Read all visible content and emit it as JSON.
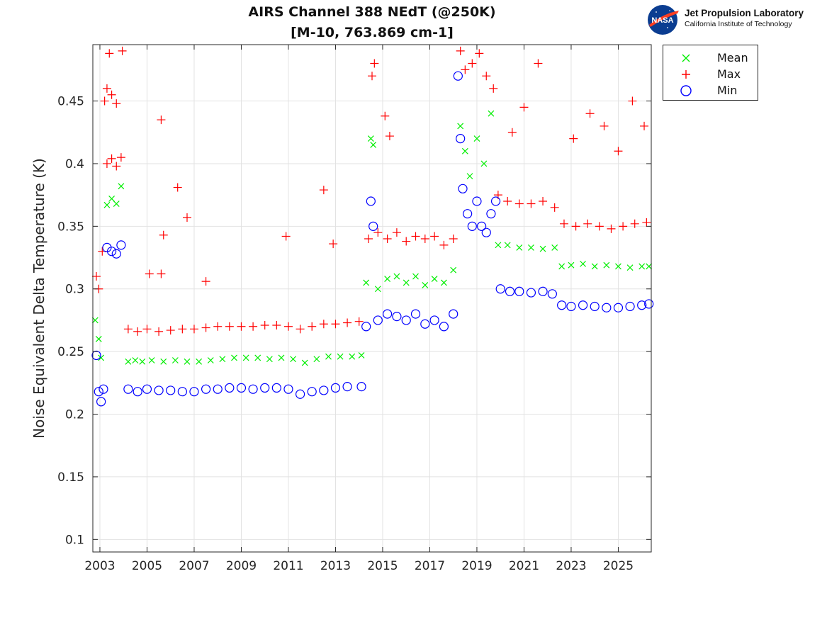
{
  "title": {
    "line1": "AIRS Channel 388 NEdT (@250K)",
    "line2": "[M-10, 763.869 cm-1]"
  },
  "logo": {
    "seal_text": "NASA",
    "name": "Jet Propulsion Laboratory",
    "subtitle": "California Institute of Technology"
  },
  "colors": {
    "mean": "#00ee00",
    "max": "#ff0000",
    "min": "#0000ff",
    "grid": "#e2e2e2",
    "axis": "#262626"
  },
  "chart_data": {
    "type": "scatter",
    "ylabel": "Noise Equivalent Delta Temperature (K)",
    "xlabel": "",
    "xlim": [
      2002.7,
      2026.4
    ],
    "ylim": [
      0.09,
      0.495
    ],
    "xticks": [
      2003,
      2005,
      2007,
      2009,
      2011,
      2013,
      2015,
      2017,
      2019,
      2021,
      2023,
      2025
    ],
    "yticks": [
      0.1,
      0.15,
      0.2,
      0.25,
      0.3,
      0.35,
      0.4,
      0.45
    ],
    "ytick_labels": [
      "0.1",
      "0.15",
      "0.2",
      "0.25",
      "0.3",
      "0.35",
      "0.4",
      "0.45"
    ],
    "grid": true,
    "legend_position": "outside-top-right",
    "series": [
      {
        "name": "Mean",
        "marker": "x",
        "points": [
          [
            2002.8,
            0.275
          ],
          [
            2002.95,
            0.26
          ],
          [
            2003.05,
            0.245
          ],
          [
            2003.3,
            0.367
          ],
          [
            2003.5,
            0.372
          ],
          [
            2003.7,
            0.368
          ],
          [
            2003.9,
            0.382
          ],
          [
            2004.2,
            0.242
          ],
          [
            2004.5,
            0.243
          ],
          [
            2004.8,
            0.242
          ],
          [
            2005.2,
            0.243
          ],
          [
            2005.7,
            0.242
          ],
          [
            2006.2,
            0.243
          ],
          [
            2006.7,
            0.242
          ],
          [
            2007.2,
            0.242
          ],
          [
            2007.7,
            0.243
          ],
          [
            2008.2,
            0.244
          ],
          [
            2008.7,
            0.245
          ],
          [
            2009.2,
            0.245
          ],
          [
            2009.7,
            0.245
          ],
          [
            2010.2,
            0.244
          ],
          [
            2010.7,
            0.245
          ],
          [
            2011.2,
            0.244
          ],
          [
            2011.7,
            0.241
          ],
          [
            2012.2,
            0.244
          ],
          [
            2012.7,
            0.246
          ],
          [
            2013.2,
            0.246
          ],
          [
            2013.7,
            0.246
          ],
          [
            2014.1,
            0.247
          ],
          [
            2014.3,
            0.305
          ],
          [
            2014.5,
            0.42
          ],
          [
            2014.6,
            0.415
          ],
          [
            2014.8,
            0.3
          ],
          [
            2015.2,
            0.308
          ],
          [
            2015.6,
            0.31
          ],
          [
            2016.0,
            0.305
          ],
          [
            2016.4,
            0.31
          ],
          [
            2016.8,
            0.303
          ],
          [
            2017.2,
            0.308
          ],
          [
            2017.6,
            0.305
          ],
          [
            2018.0,
            0.315
          ],
          [
            2018.3,
            0.43
          ],
          [
            2018.5,
            0.41
          ],
          [
            2018.7,
            0.39
          ],
          [
            2019.0,
            0.42
          ],
          [
            2019.3,
            0.4
          ],
          [
            2019.6,
            0.44
          ],
          [
            2019.9,
            0.335
          ],
          [
            2020.3,
            0.335
          ],
          [
            2020.8,
            0.333
          ],
          [
            2021.3,
            0.333
          ],
          [
            2021.8,
            0.332
          ],
          [
            2022.3,
            0.333
          ],
          [
            2022.6,
            0.318
          ],
          [
            2023.0,
            0.319
          ],
          [
            2023.5,
            0.32
          ],
          [
            2024.0,
            0.318
          ],
          [
            2024.5,
            0.319
          ],
          [
            2025.0,
            0.318
          ],
          [
            2025.5,
            0.317
          ],
          [
            2026.0,
            0.318
          ],
          [
            2026.3,
            0.318
          ]
        ]
      },
      {
        "name": "Max",
        "marker": "+",
        "points": [
          [
            2002.85,
            0.31
          ],
          [
            2002.95,
            0.3
          ],
          [
            2003.1,
            0.33
          ],
          [
            2003.2,
            0.45
          ],
          [
            2003.3,
            0.46
          ],
          [
            2003.5,
            0.455
          ],
          [
            2003.7,
            0.448
          ],
          [
            2003.3,
            0.4
          ],
          [
            2003.5,
            0.404
          ],
          [
            2003.7,
            0.398
          ],
          [
            2003.9,
            0.405
          ],
          [
            2003.95,
            0.49
          ],
          [
            2003.4,
            0.488
          ],
          [
            2004.2,
            0.268
          ],
          [
            2004.6,
            0.266
          ],
          [
            2005.0,
            0.268
          ],
          [
            2005.5,
            0.266
          ],
          [
            2006.0,
            0.267
          ],
          [
            2006.5,
            0.268
          ],
          [
            2007.0,
            0.268
          ],
          [
            2007.5,
            0.269
          ],
          [
            2008.0,
            0.27
          ],
          [
            2008.5,
            0.27
          ],
          [
            2009.0,
            0.27
          ],
          [
            2009.5,
            0.27
          ],
          [
            2010.0,
            0.271
          ],
          [
            2010.5,
            0.271
          ],
          [
            2011.0,
            0.27
          ],
          [
            2011.5,
            0.268
          ],
          [
            2012.0,
            0.27
          ],
          [
            2012.5,
            0.272
          ],
          [
            2013.0,
            0.272
          ],
          [
            2013.5,
            0.273
          ],
          [
            2014.0,
            0.274
          ],
          [
            2005.6,
            0.435
          ],
          [
            2006.3,
            0.381
          ],
          [
            2006.7,
            0.357
          ],
          [
            2005.7,
            0.343
          ],
          [
            2010.9,
            0.342
          ],
          [
            2012.5,
            0.379
          ],
          [
            2012.9,
            0.336
          ],
          [
            2007.5,
            0.306
          ],
          [
            2005.1,
            0.312
          ],
          [
            2005.6,
            0.312
          ],
          [
            2014.4,
            0.34
          ],
          [
            2014.55,
            0.47
          ],
          [
            2014.65,
            0.48
          ],
          [
            2014.8,
            0.345
          ],
          [
            2015.2,
            0.34
          ],
          [
            2015.6,
            0.345
          ],
          [
            2016.0,
            0.338
          ],
          [
            2016.4,
            0.342
          ],
          [
            2016.8,
            0.34
          ],
          [
            2017.2,
            0.342
          ],
          [
            2017.6,
            0.335
          ],
          [
            2018.0,
            0.34
          ],
          [
            2015.1,
            0.438
          ],
          [
            2015.3,
            0.422
          ],
          [
            2018.3,
            0.49
          ],
          [
            2018.5,
            0.475
          ],
          [
            2018.8,
            0.48
          ],
          [
            2019.1,
            0.488
          ],
          [
            2019.4,
            0.47
          ],
          [
            2019.7,
            0.46
          ],
          [
            2019.9,
            0.375
          ],
          [
            2020.3,
            0.37
          ],
          [
            2020.8,
            0.368
          ],
          [
            2021.3,
            0.368
          ],
          [
            2021.8,
            0.37
          ],
          [
            2022.3,
            0.365
          ],
          [
            2020.5,
            0.425
          ],
          [
            2021.0,
            0.445
          ],
          [
            2021.6,
            0.48
          ],
          [
            2022.7,
            0.352
          ],
          [
            2023.2,
            0.35
          ],
          [
            2023.7,
            0.352
          ],
          [
            2024.2,
            0.35
          ],
          [
            2024.7,
            0.348
          ],
          [
            2025.2,
            0.35
          ],
          [
            2025.7,
            0.352
          ],
          [
            2026.2,
            0.353
          ],
          [
            2023.1,
            0.42
          ],
          [
            2023.8,
            0.44
          ],
          [
            2024.4,
            0.43
          ],
          [
            2025.0,
            0.41
          ],
          [
            2025.6,
            0.45
          ],
          [
            2026.1,
            0.43
          ]
        ]
      },
      {
        "name": "Min",
        "marker": "o",
        "points": [
          [
            2002.85,
            0.247
          ],
          [
            2002.95,
            0.218
          ],
          [
            2003.05,
            0.21
          ],
          [
            2003.15,
            0.22
          ],
          [
            2003.3,
            0.333
          ],
          [
            2003.5,
            0.33
          ],
          [
            2003.7,
            0.328
          ],
          [
            2003.9,
            0.335
          ],
          [
            2004.2,
            0.22
          ],
          [
            2004.6,
            0.218
          ],
          [
            2005.0,
            0.22
          ],
          [
            2005.5,
            0.219
          ],
          [
            2006.0,
            0.219
          ],
          [
            2006.5,
            0.218
          ],
          [
            2007.0,
            0.218
          ],
          [
            2007.5,
            0.22
          ],
          [
            2008.0,
            0.22
          ],
          [
            2008.5,
            0.221
          ],
          [
            2009.0,
            0.221
          ],
          [
            2009.5,
            0.22
          ],
          [
            2010.0,
            0.221
          ],
          [
            2010.5,
            0.221
          ],
          [
            2011.0,
            0.22
          ],
          [
            2011.5,
            0.216
          ],
          [
            2012.0,
            0.218
          ],
          [
            2012.5,
            0.219
          ],
          [
            2013.0,
            0.221
          ],
          [
            2013.5,
            0.222
          ],
          [
            2014.1,
            0.222
          ],
          [
            2014.3,
            0.27
          ],
          [
            2014.5,
            0.37
          ],
          [
            2014.6,
            0.35
          ],
          [
            2014.8,
            0.275
          ],
          [
            2015.2,
            0.28
          ],
          [
            2015.6,
            0.278
          ],
          [
            2016.0,
            0.275
          ],
          [
            2016.4,
            0.28
          ],
          [
            2016.8,
            0.272
          ],
          [
            2017.2,
            0.275
          ],
          [
            2017.6,
            0.27
          ],
          [
            2018.0,
            0.28
          ],
          [
            2018.2,
            0.47
          ],
          [
            2018.3,
            0.42
          ],
          [
            2018.4,
            0.38
          ],
          [
            2018.6,
            0.36
          ],
          [
            2018.8,
            0.35
          ],
          [
            2019.0,
            0.37
          ],
          [
            2019.2,
            0.35
          ],
          [
            2019.4,
            0.345
          ],
          [
            2019.6,
            0.36
          ],
          [
            2019.8,
            0.37
          ],
          [
            2020.0,
            0.3
          ],
          [
            2020.4,
            0.298
          ],
          [
            2020.8,
            0.298
          ],
          [
            2021.3,
            0.297
          ],
          [
            2021.8,
            0.298
          ],
          [
            2022.2,
            0.296
          ],
          [
            2022.6,
            0.287
          ],
          [
            2023.0,
            0.286
          ],
          [
            2023.5,
            0.287
          ],
          [
            2024.0,
            0.286
          ],
          [
            2024.5,
            0.285
          ],
          [
            2025.0,
            0.285
          ],
          [
            2025.5,
            0.286
          ],
          [
            2026.0,
            0.287
          ],
          [
            2026.3,
            0.288
          ]
        ]
      }
    ]
  }
}
